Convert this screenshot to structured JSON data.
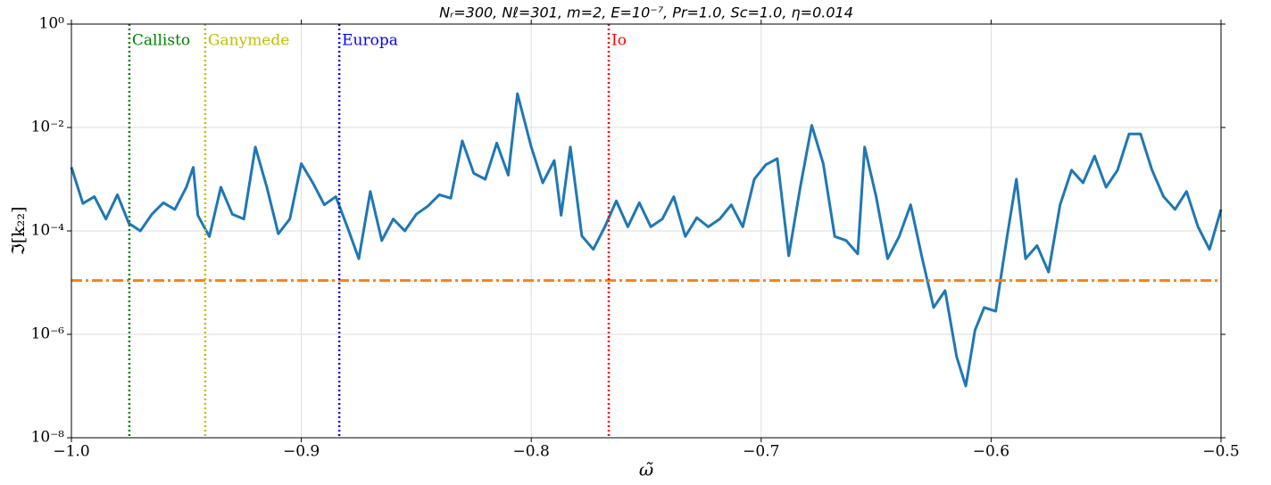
{
  "chart_data": {
    "type": "line",
    "title": "Nᵣ=300,  Nℓ=301,  m=2,  E=10⁻⁷,  Pr=1.0,  Sc=1.0,  η=0.014",
    "x_label": "ω̃",
    "y_label": "ℑ[k₂₂]",
    "y_scale": "log",
    "grid": true,
    "xlim": [
      -1.0,
      -0.5
    ],
    "xticks": [
      {
        "value": -1.0,
        "label": "−1.0"
      },
      {
        "value": -0.9,
        "label": "−0.9"
      },
      {
        "value": -0.8,
        "label": "−0.8"
      },
      {
        "value": -0.7,
        "label": "−0.7"
      },
      {
        "value": -0.6,
        "label": "−0.6"
      },
      {
        "value": -0.5,
        "label": "−0.5"
      }
    ],
    "ylim": [
      1e-08,
      1
    ],
    "yticks": [
      {
        "value": 1e-08,
        "label": "10⁻⁸"
      },
      {
        "value": 1e-06,
        "label": "10⁻⁶"
      },
      {
        "value": 0.0001,
        "label": "10⁻⁴"
      },
      {
        "value": 0.01,
        "label": "10⁻²"
      },
      {
        "value": 1,
        "label": "10⁰"
      }
    ],
    "x": [
      -1.0,
      -0.995,
      -0.99,
      -0.985,
      -0.98,
      -0.975,
      -0.97,
      -0.965,
      -0.96,
      -0.955,
      -0.95,
      -0.947,
      -0.945,
      -0.94,
      -0.935,
      -0.93,
      -0.925,
      -0.92,
      -0.915,
      -0.91,
      -0.905,
      -0.9,
      -0.895,
      -0.89,
      -0.885,
      -0.88,
      -0.875,
      -0.87,
      -0.865,
      -0.86,
      -0.855,
      -0.85,
      -0.845,
      -0.84,
      -0.835,
      -0.83,
      -0.825,
      -0.82,
      -0.815,
      -0.81,
      -0.806,
      -0.8,
      -0.795,
      -0.79,
      -0.787,
      -0.783,
      -0.778,
      -0.773,
      -0.768,
      -0.763,
      -0.758,
      -0.753,
      -0.748,
      -0.743,
      -0.738,
      -0.733,
      -0.728,
      -0.723,
      -0.718,
      -0.713,
      -0.708,
      -0.703,
      -0.698,
      -0.693,
      -0.688,
      -0.683,
      -0.678,
      -0.673,
      -0.668,
      -0.663,
      -0.658,
      -0.655,
      -0.65,
      -0.645,
      -0.64,
      -0.635,
      -0.63,
      -0.625,
      -0.62,
      -0.615,
      -0.611,
      -0.607,
      -0.603,
      -0.598,
      -0.593,
      -0.589,
      -0.585,
      -0.58,
      -0.575,
      -0.57,
      -0.565,
      -0.56,
      -0.555,
      -0.55,
      -0.545,
      -0.54,
      -0.535,
      -0.53,
      -0.525,
      -0.52,
      -0.515,
      -0.51,
      -0.505,
      -0.5
    ],
    "series": [
      {
        "color": "#1f77b4",
        "values": [
          0.0017,
          0.00034,
          0.00046,
          0.00017,
          0.0005,
          0.00014,
          0.0001,
          0.00021,
          0.00035,
          0.00026,
          0.0007,
          0.0017,
          0.0002,
          7.8e-05,
          0.0007,
          0.00021,
          0.00017,
          0.0042,
          0.0007,
          8.8e-05,
          0.00017,
          0.002,
          0.00085,
          0.00032,
          0.00046,
          0.00012,
          2.9e-05,
          0.00058,
          6.5e-05,
          0.00017,
          0.0001,
          0.00021,
          0.0003,
          0.0005,
          0.00043,
          0.0055,
          0.0013,
          0.001,
          0.005,
          0.0012,
          0.045,
          0.0042,
          0.00085,
          0.0023,
          0.0002,
          0.0042,
          8e-05,
          4.4e-05,
          0.00012,
          0.00038,
          0.00012,
          0.00035,
          0.00012,
          0.00017,
          0.00046,
          7.8e-05,
          0.00018,
          0.00012,
          0.00017,
          0.00032,
          0.00012,
          0.001,
          0.0019,
          0.0025,
          3.3e-05,
          0.0007,
          0.011,
          0.002,
          7.8e-05,
          6.5e-05,
          3.6e-05,
          0.0042,
          0.00046,
          2.9e-05,
          7.8e-05,
          0.00032,
          3e-05,
          3.3e-06,
          7e-06,
          3.7e-07,
          1e-07,
          1.2e-06,
          3.3e-06,
          2.8e-06,
          8e-05,
          0.001,
          2.9e-05,
          5.2e-05,
          1.6e-05,
          0.00032,
          0.0015,
          0.00085,
          0.0028,
          0.0007,
          0.0015,
          0.0075,
          0.0075,
          0.0015,
          0.00046,
          0.00026,
          0.00058,
          0.00012,
          4.4e-05,
          0.00026
        ]
      }
    ],
    "hline": {
      "value": 1.1e-05,
      "color": "#ff7f0e"
    },
    "vlines": [
      {
        "label": "Callisto",
        "x": -0.9748,
        "color": "#008000"
      },
      {
        "label": "Ganymede",
        "x": -0.9418,
        "color": "#bfbf00"
      },
      {
        "label": "Europa",
        "x": -0.8835,
        "color": "#0000ff"
      },
      {
        "label": "Io",
        "x": -0.7663,
        "color": "#ff0000"
      }
    ]
  }
}
